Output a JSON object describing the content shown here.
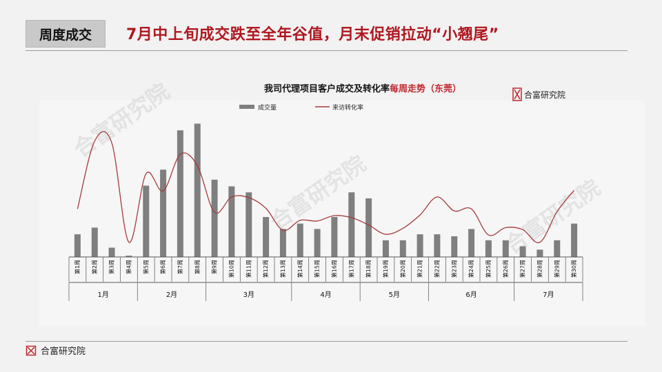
{
  "header": {
    "tag": "周度成交",
    "headline": "7月中上旬成交跌至全年谷值，月末促销拉动“小翘尾”"
  },
  "footer": {
    "brand": "合富研究院"
  },
  "watermark": "合富研究院",
  "colors": {
    "accent": "#b0171f",
    "bar": "#7f7f7f",
    "line": "#a33a3a"
  },
  "chart_data": {
    "type": "bar+line",
    "title_main": "我司代理项目客户成交及转化率",
    "title_emph": "每周",
    "title_tail": "走势（东莞）",
    "brand": "合富研究院",
    "legend": [
      {
        "name": "成交量",
        "kind": "bar"
      },
      {
        "name": "来访转化率",
        "kind": "line"
      }
    ],
    "categories": [
      "第1周",
      "第2周",
      "第3周",
      "第4周",
      "第5周",
      "第6周",
      "第7周",
      "第8周",
      "第9周",
      "第10周",
      "第11周",
      "第12周",
      "第13周",
      "第14周",
      "第15周",
      "第16周",
      "第17周",
      "第18周",
      "第19周",
      "第20周",
      "第21周",
      "第22周",
      "第23周",
      "第24周",
      "第25周",
      "第26周",
      "第27周",
      "第28周",
      "第29周",
      "第30周"
    ],
    "series": [
      {
        "name": "成交量",
        "values": [
          34,
          44,
          14,
          2,
          107,
          131,
          190,
          200,
          116,
          106,
          97,
          60,
          42,
          50,
          42,
          60,
          97,
          88,
          25,
          25,
          34,
          34,
          31,
          42,
          25,
          25,
          16,
          11,
          25,
          50
        ]
      },
      {
        "name": "来访转化率",
        "values": [
          72,
          174,
          171,
          22,
          125,
          99,
          154,
          137,
          67,
          90,
          89,
          73,
          40,
          55,
          54,
          62,
          59,
          48,
          34,
          43,
          63,
          90,
          69,
          72,
          33,
          44,
          41,
          22,
          68,
          100
        ]
      }
    ],
    "months": [
      {
        "label": "1月",
        "start": 0,
        "end": 3
      },
      {
        "label": "2月",
        "start": 4,
        "end": 7
      },
      {
        "label": "3月",
        "start": 8,
        "end": 12
      },
      {
        "label": "4月",
        "start": 13,
        "end": 16
      },
      {
        "label": "5月",
        "start": 17,
        "end": 20
      },
      {
        "label": "6月",
        "start": 21,
        "end": 25
      },
      {
        "label": "7月",
        "start": 26,
        "end": 29
      }
    ],
    "grid": false
  }
}
